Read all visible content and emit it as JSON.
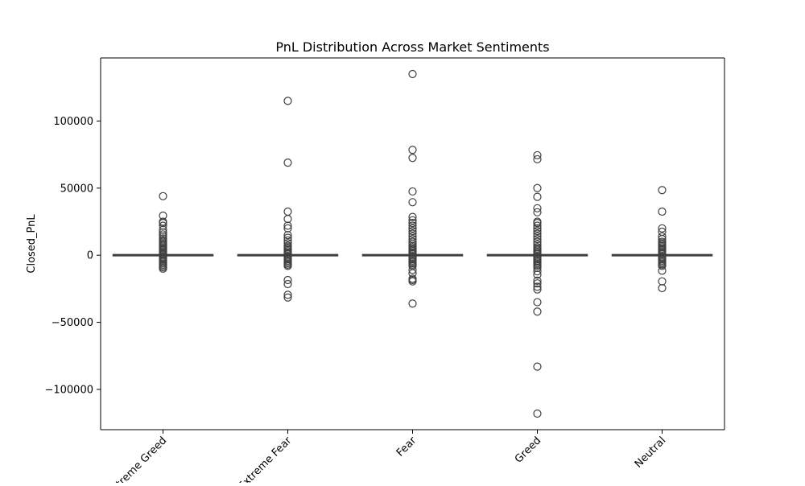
{
  "chart_data": {
    "type": "box",
    "title": "PnL Distribution Across Market Sentiments",
    "xlabel": "",
    "ylabel": "Closed_PnL",
    "categories": [
      "Extreme Greed",
      "Extreme Fear",
      "Fear",
      "Greed",
      "Neutral"
    ],
    "ylim": [
      -130000,
      147000
    ],
    "yticks": [
      -100000,
      -50000,
      0,
      50000,
      100000
    ],
    "ytick_labels": [
      "−100000",
      "−50000",
      "0",
      "50000",
      "100000"
    ],
    "grid": false,
    "legend": "none",
    "colors": {
      "box_fill": "#ffffff",
      "line": "#3f3f3f",
      "outlier_edge": "#3f3f3f",
      "axes": "#000000"
    },
    "boxes": [
      {
        "category": "Extreme Greed",
        "whisker_low": -150,
        "q1": -2,
        "median": 0,
        "q3": 50,
        "whisker_high": 180,
        "outliers": [
          44000,
          29500,
          25000,
          24000,
          22000,
          19000,
          17000,
          15500,
          14000,
          12500,
          11000,
          10000,
          9000,
          8000,
          7000,
          6000,
          5000,
          4000,
          3000,
          2000,
          1000,
          500,
          -1000,
          -2000,
          -3000,
          -4000,
          -5000,
          -6000,
          -7000,
          -8000,
          -9000,
          -10000
        ]
      },
      {
        "category": "Extreme Fear",
        "whisker_low": -120,
        "q1": -3,
        "median": 0,
        "q3": 40,
        "whisker_high": 150,
        "outliers": [
          115000,
          69000,
          32500,
          27000,
          22000,
          20000,
          15000,
          13000,
          11000,
          9000,
          7000,
          6000,
          5000,
          4000,
          3000,
          2000,
          1000,
          -1000,
          -2000,
          -3000,
          -4000,
          -5000,
          -6000,
          -7000,
          -8000,
          -18500,
          -21500,
          -29500,
          -31500
        ]
      },
      {
        "category": "Fear",
        "whisker_low": -200,
        "q1": -5,
        "median": 0,
        "q3": 60,
        "whisker_high": 250,
        "outliers": [
          135000,
          78500,
          72500,
          47500,
          39500,
          28500,
          26000,
          24000,
          22000,
          20000,
          18000,
          16000,
          14000,
          12000,
          10000,
          8500,
          7000,
          6000,
          5000,
          4000,
          3000,
          2000,
          1000,
          -1000,
          -2000,
          -3000,
          -4000,
          -5000,
          -6000,
          -7000,
          -8000,
          -11000,
          -13500,
          -17500,
          -18500,
          -19500,
          -36000
        ]
      },
      {
        "category": "Greed",
        "whisker_low": -180,
        "q1": -4,
        "median": 0,
        "q3": 55,
        "whisker_high": 220,
        "outliers": [
          74500,
          71500,
          50000,
          43500,
          35000,
          32000,
          25000,
          24000,
          22000,
          20000,
          18000,
          16000,
          14000,
          12000,
          10000,
          8000,
          6000,
          5000,
          4000,
          3000,
          2000,
          1000,
          -1000,
          -2000,
          -3000,
          -4000,
          -5000,
          -6000,
          -7000,
          -8000,
          -9500,
          -12000,
          -14500,
          -19000,
          -21000,
          -23500,
          -25500,
          -35000,
          -42000,
          -83000,
          -118000
        ]
      },
      {
        "category": "Neutral",
        "whisker_low": -140,
        "q1": -2,
        "median": 0,
        "q3": 45,
        "whisker_high": 170,
        "outliers": [
          48500,
          32500,
          20000,
          17500,
          14000,
          12000,
          10000,
          9000,
          8000,
          7000,
          6000,
          5000,
          4000,
          3000,
          2000,
          1000,
          -1000,
          -2000,
          -3000,
          -4000,
          -5000,
          -6000,
          -7000,
          -8000,
          -11500,
          -19500,
          -24500
        ]
      }
    ]
  }
}
